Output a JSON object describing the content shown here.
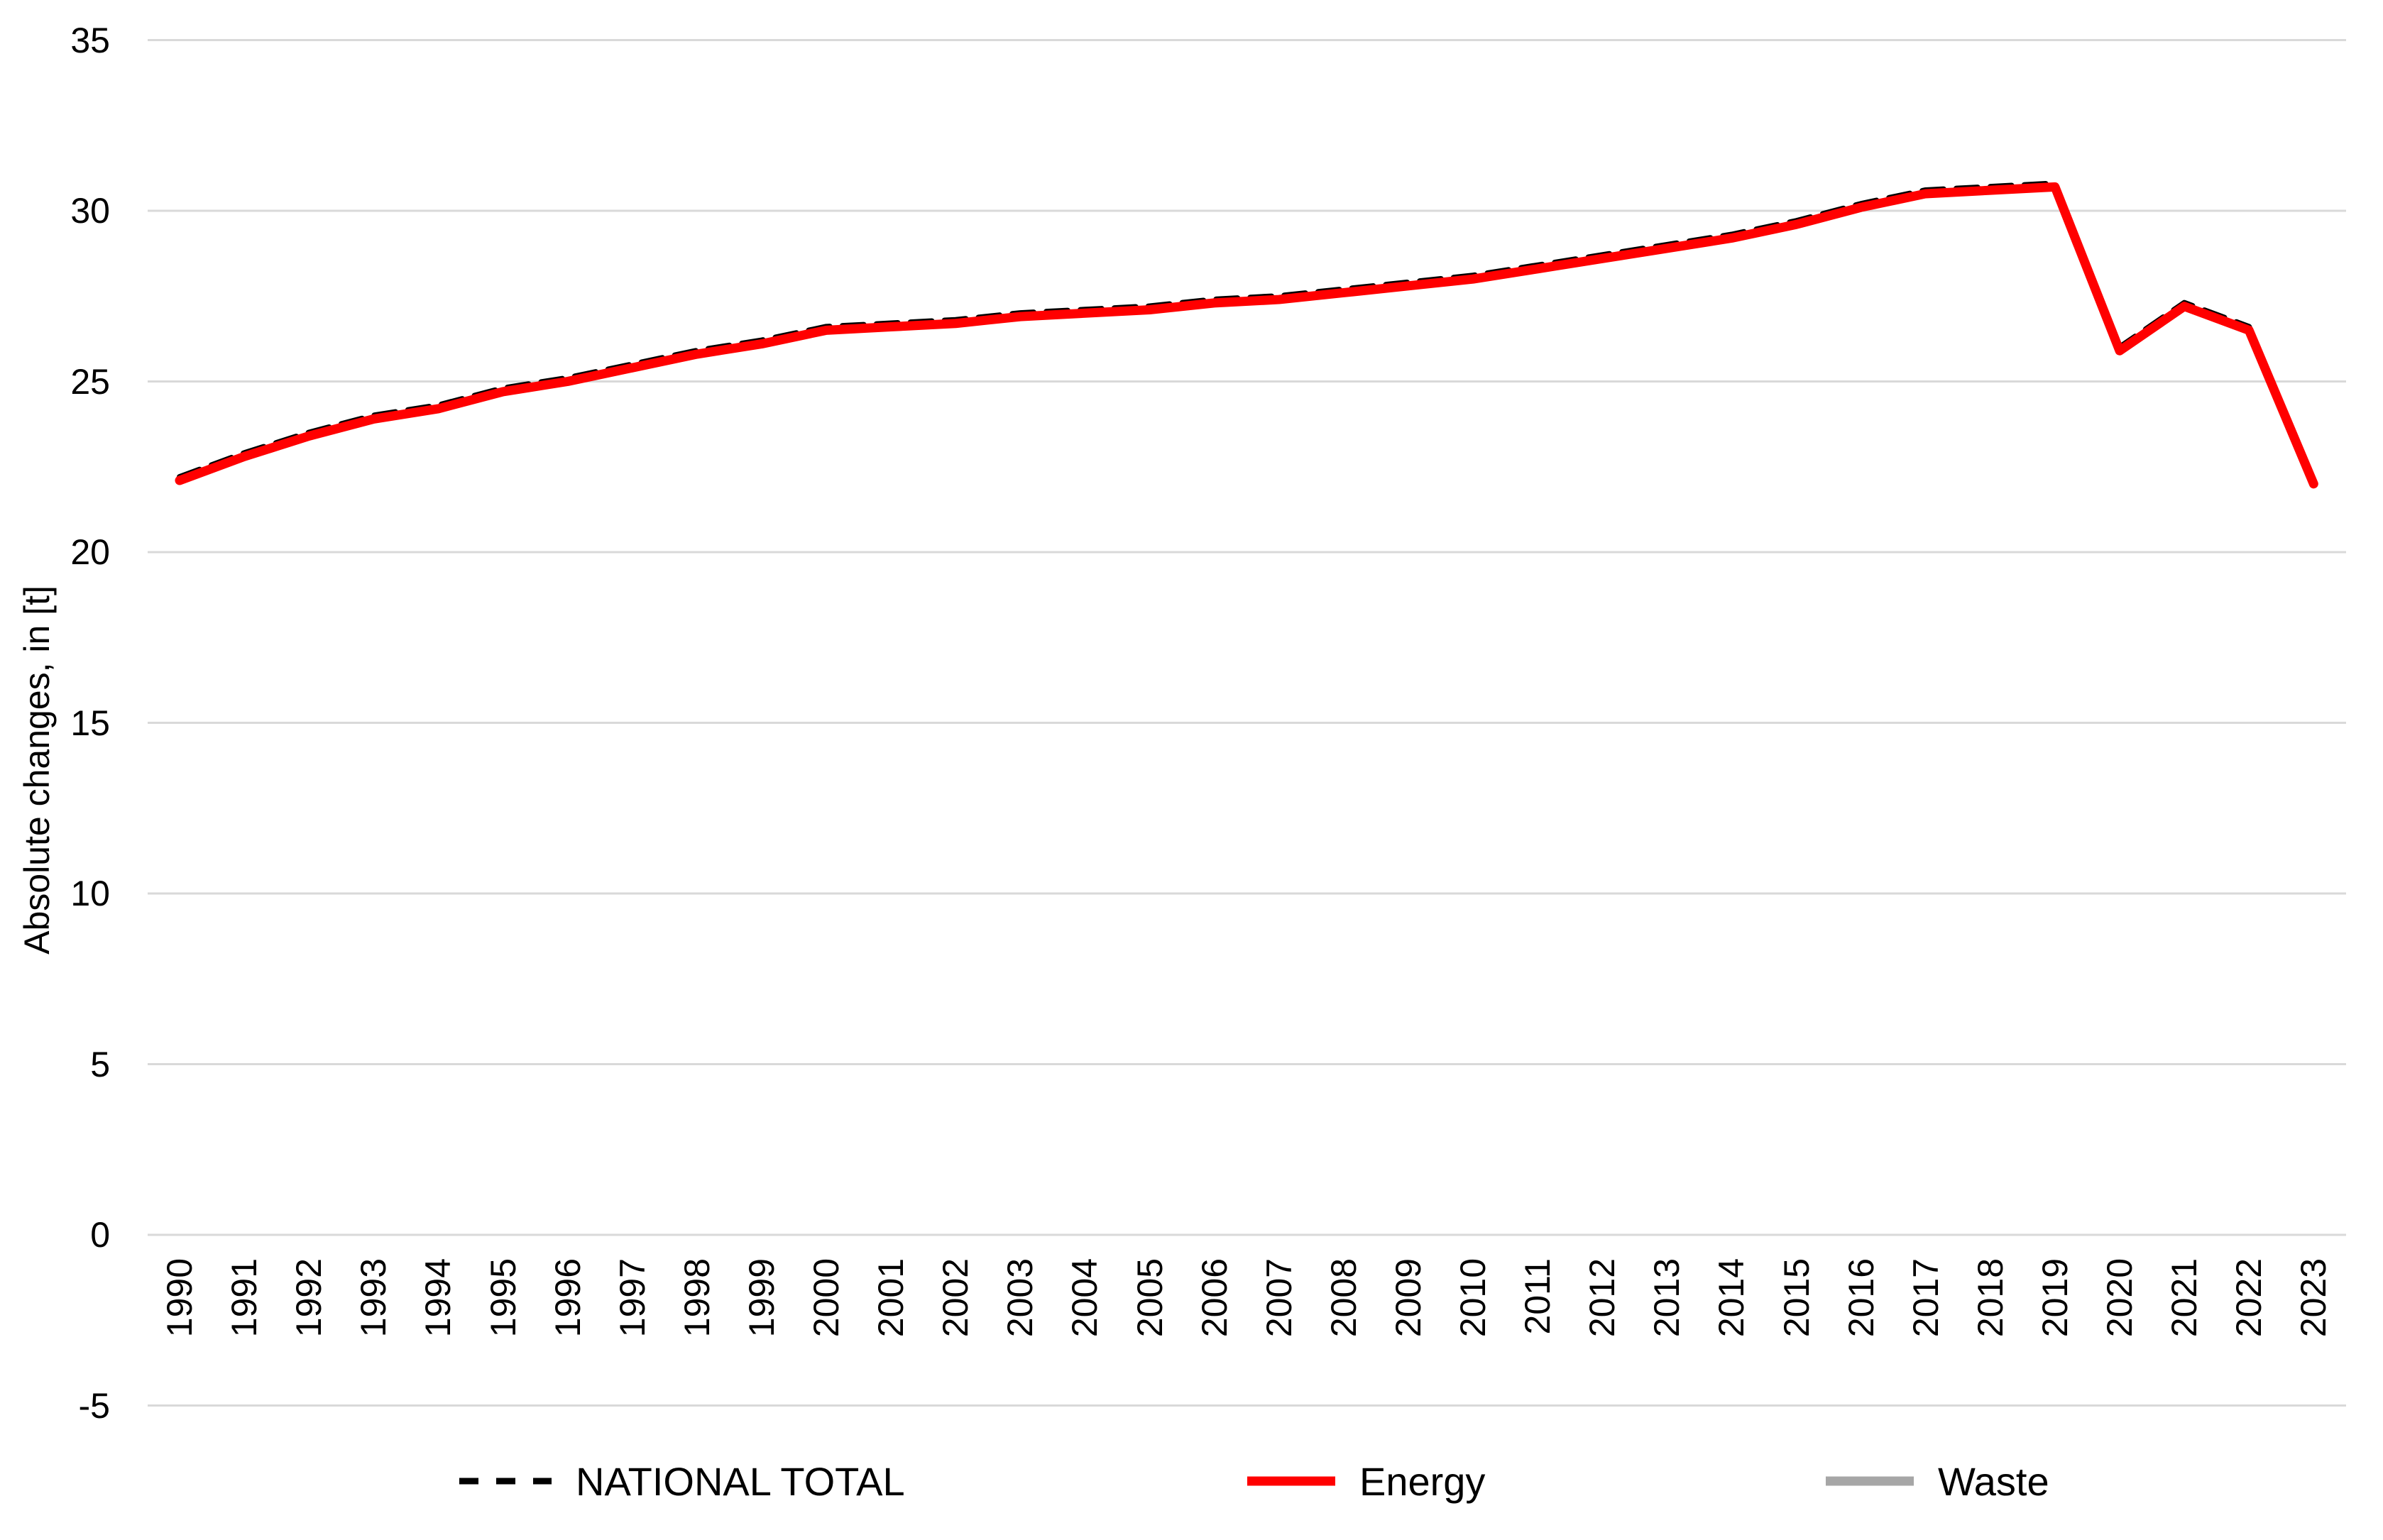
{
  "page": {
    "background": "#ffffff"
  },
  "chart_data": {
    "type": "line",
    "title": "",
    "xlabel": "",
    "ylabel": "Absolute changes, in [t]",
    "x": [
      "1990",
      "1991",
      "1992",
      "1993",
      "1994",
      "1995",
      "1996",
      "1997",
      "1998",
      "1999",
      "2000",
      "2001",
      "2002",
      "2003",
      "2004",
      "2005",
      "2006",
      "2007",
      "2008",
      "2009",
      "2010",
      "2011",
      "2012",
      "2013",
      "2014",
      "2015",
      "2016",
      "2017",
      "2018",
      "2019",
      "2020",
      "2021",
      "2022",
      "2023"
    ],
    "ylim": [
      -5,
      35
    ],
    "yticks": [
      35,
      30,
      25,
      20,
      15,
      10,
      5,
      0,
      -5
    ],
    "grid": "horizontal-only",
    "gridline_color": "#d9d9d9",
    "legend_position": "bottom",
    "series": [
      {
        "name": "NATIONAL TOTAL",
        "color": "#000000",
        "line_style": "dashed",
        "values": [
          22.1,
          22.8,
          23.4,
          23.9,
          24.2,
          24.7,
          25.0,
          25.4,
          25.8,
          26.1,
          26.5,
          26.6,
          26.7,
          26.9,
          27.0,
          27.1,
          27.3,
          27.4,
          27.6,
          27.8,
          28.0,
          28.3,
          28.6,
          28.9,
          29.2,
          29.6,
          30.1,
          30.5,
          30.6,
          30.7,
          25.9,
          27.2,
          26.5,
          22.0
        ]
      },
      {
        "name": "Energy",
        "color": "#ff0000",
        "line_style": "solid",
        "values": [
          22.1,
          22.8,
          23.4,
          23.9,
          24.2,
          24.7,
          25.0,
          25.4,
          25.8,
          26.1,
          26.5,
          26.6,
          26.7,
          26.9,
          27.0,
          27.1,
          27.3,
          27.4,
          27.6,
          27.8,
          28.0,
          28.3,
          28.6,
          28.9,
          29.2,
          29.6,
          30.1,
          30.5,
          30.6,
          30.7,
          25.9,
          27.2,
          26.5,
          22.0
        ]
      },
      {
        "name": "Waste",
        "color": "#a6a6a6",
        "line_style": "solid",
        "values": []
      }
    ]
  },
  "legend": {
    "items": [
      {
        "label": "NATIONAL TOTAL",
        "swatch": "dashed-black",
        "color": "#000000"
      },
      {
        "label": "Energy",
        "swatch": "solid-red",
        "color": "#ff0000"
      },
      {
        "label": "Waste",
        "swatch": "solid-gray",
        "color": "#a6a6a6"
      }
    ]
  }
}
